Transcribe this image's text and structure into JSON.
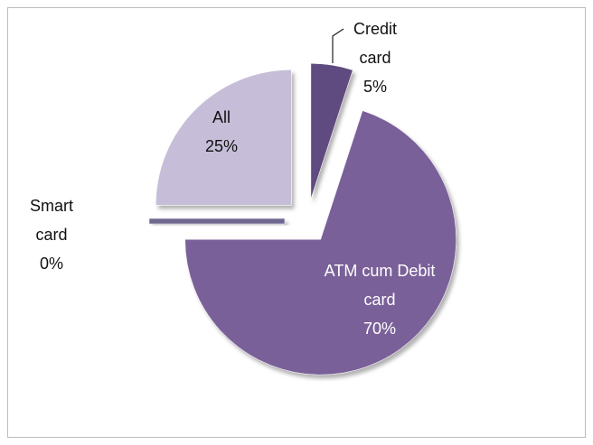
{
  "chart_data": {
    "type": "pie",
    "categories": [
      "Credit card",
      "ATM cum Debit card",
      "Smart card",
      "All"
    ],
    "values": [
      5,
      70,
      0,
      25
    ],
    "value_labels": [
      "5%",
      "70%",
      "0%",
      "25%"
    ],
    "colors": [
      "#5f4b80",
      "#7a6199",
      "#6f6790",
      "#c6bed8"
    ]
  }
}
